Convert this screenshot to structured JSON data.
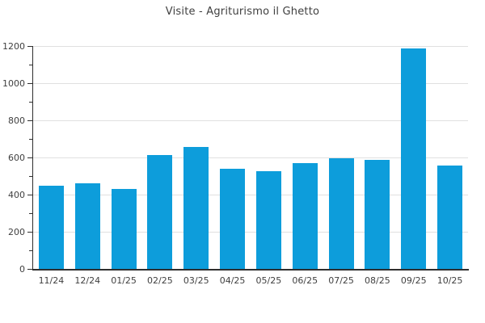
{
  "chart_data": {
    "type": "bar",
    "title": "Visite - Agriturismo il Ghetto",
    "categories": [
      "11/24",
      "12/24",
      "01/25",
      "02/25",
      "03/25",
      "04/25",
      "05/25",
      "06/25",
      "07/25",
      "08/25",
      "09/25",
      "10/25"
    ],
    "values": [
      450,
      460,
      430,
      615,
      655,
      540,
      525,
      570,
      595,
      585,
      1185,
      555
    ],
    "xlabel": "",
    "ylabel": "",
    "ylim": [
      0,
      1200
    ],
    "ytick_step": 200,
    "minor_ytick_step": 100,
    "ytick_labels": [
      "0",
      "200",
      "400",
      "600",
      "800",
      "1000",
      "1200"
    ],
    "grid": "horizontal-major",
    "legend": "none",
    "bar_color": "#0d9ddb",
    "grid_color": "#e0e0e0",
    "axis_color": "#2e2e2e",
    "text_color": "#3f3f3f",
    "background": "#ffffff"
  }
}
